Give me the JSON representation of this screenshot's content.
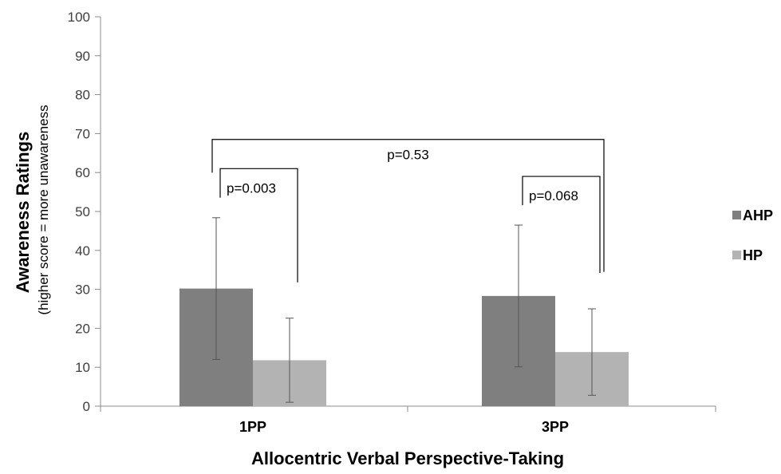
{
  "chart_data": {
    "type": "bar",
    "categories": [
      "1PP",
      "3PP"
    ],
    "series": [
      {
        "name": "AHP",
        "values": [
          30.2,
          28.3
        ],
        "error": [
          18.2,
          18.2
        ],
        "color": "#7f7f7f"
      },
      {
        "name": "HP",
        "values": [
          11.8,
          13.9
        ],
        "error": [
          10.8,
          11.1
        ],
        "color": "#b3b3b3"
      }
    ],
    "ylim": [
      0,
      100
    ],
    "yticks": [
      0,
      10,
      20,
      30,
      40,
      50,
      60,
      70,
      80,
      90,
      100
    ],
    "xlabel": "Allocentric Verbal Perspective-Taking",
    "ylabel": "Awareness Ratings",
    "ylabel_sub": "(higher score = more unawareness",
    "legend_position": "right",
    "grid": false,
    "annotations": [
      {
        "text": "p=0.003",
        "category": "1PP",
        "level": 61
      },
      {
        "text": "p=0.068",
        "category": "3PP",
        "level": 59
      },
      {
        "text": "p=0.53",
        "between": [
          "1PP",
          "3PP"
        ],
        "level": 68.5
      }
    ]
  }
}
